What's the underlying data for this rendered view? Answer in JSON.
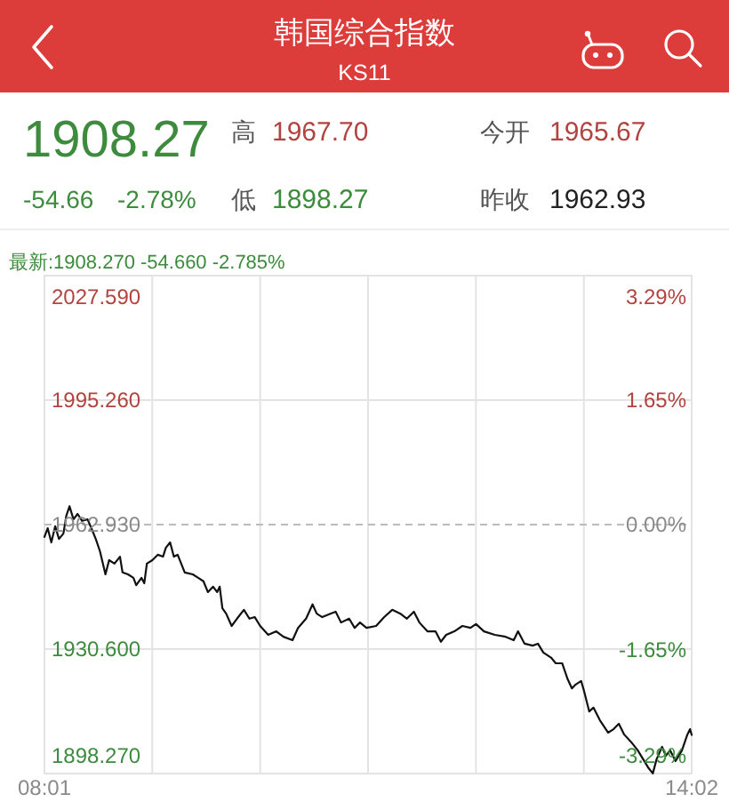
{
  "chart_data": {
    "type": "line",
    "title": "韩国综合指数",
    "subtitle": "KS11",
    "annotations": [
      "1908.27",
      "-54.66",
      "-2.78%",
      "高",
      "1967.70",
      "低",
      "1898.27",
      "今开",
      "1965.67",
      "昨收",
      "1962.93",
      "最新:1908.270 -54.660 -2.785%"
    ],
    "x": [
      8.017,
      8.047,
      8.081,
      8.117,
      8.152,
      8.193,
      8.22,
      8.25,
      8.287,
      8.325,
      8.367,
      8.418,
      8.453,
      8.494,
      8.533,
      8.584,
      8.618,
      8.668,
      8.719,
      8.743,
      8.794,
      8.844,
      8.87,
      8.919,
      8.945,
      8.969,
      9.02,
      9.07,
      9.119,
      9.145,
      9.185,
      9.22,
      9.255,
      9.321,
      9.396,
      9.446,
      9.495,
      9.536,
      9.585,
      9.622,
      9.646,
      9.671,
      9.706,
      9.757,
      9.807,
      9.871,
      9.922,
      9.972,
      10.022,
      10.097,
      10.172,
      10.238,
      10.323,
      10.374,
      10.449,
      10.509,
      10.548,
      10.599,
      10.675,
      10.724,
      10.774,
      10.849,
      10.9,
      10.95,
      11.01,
      11.1,
      11.175,
      11.25,
      11.325,
      11.386,
      11.451,
      11.502,
      11.577,
      11.652,
      11.702,
      11.751,
      11.827,
      11.902,
      11.977,
      12.028,
      12.103,
      12.203,
      12.304,
      12.379,
      12.419,
      12.48,
      12.555,
      12.604,
      12.654,
      12.729,
      12.77,
      12.83,
      12.88,
      12.92,
      12.955,
      13.006,
      13.03,
      13.081,
      13.12,
      13.18,
      13.256,
      13.307,
      13.356,
      13.406,
      13.481,
      13.532,
      13.582,
      13.632,
      13.672,
      13.707,
      13.758,
      13.793,
      13.833,
      13.883,
      13.943,
      13.993,
      14.018,
      14.033
    ],
    "series": [
      {
        "color": "#111111",
        "values": [
          1959.7,
          1962.0,
          1958.3,
          1962.5,
          1959.2,
          1960.6,
          1965.2,
          1967.7,
          1964.3,
          1965.7,
          1963.9,
          1964.3,
          1962.0,
          1959.2,
          1956.0,
          1950.0,
          1953.7,
          1952.8,
          1954.6,
          1950.5,
          1950.0,
          1949.1,
          1947.2,
          1949.1,
          1947.7,
          1952.8,
          1953.7,
          1955.1,
          1954.6,
          1956.9,
          1958.3,
          1954.6,
          1955.1,
          1950.5,
          1950.0,
          1949.1,
          1948.2,
          1945.4,
          1946.8,
          1945.4,
          1946.8,
          1941.2,
          1939.8,
          1936.6,
          1938.5,
          1940.8,
          1938.5,
          1938.9,
          1936.6,
          1934.3,
          1935.2,
          1933.8,
          1932.9,
          1936.1,
          1938.5,
          1942.2,
          1939.8,
          1938.9,
          1939.8,
          1940.3,
          1937.5,
          1938.5,
          1936.1,
          1937.5,
          1936.1,
          1936.6,
          1938.9,
          1940.8,
          1939.8,
          1938.5,
          1940.3,
          1937.5,
          1935.2,
          1935.2,
          1932.5,
          1934.3,
          1935.2,
          1936.6,
          1936.1,
          1937.1,
          1935.2,
          1934.3,
          1933.8,
          1932.9,
          1935.2,
          1932.0,
          1931.5,
          1932.0,
          1929.7,
          1928.3,
          1926.9,
          1926.9,
          1922.8,
          1920.4,
          1921.4,
          1922.3,
          1920.0,
          1914.4,
          1915.4,
          1912.1,
          1908.9,
          1909.8,
          1911.2,
          1908.4,
          1906.1,
          1904.3,
          1902.0,
          1899.7,
          1898.3,
          1902.0,
          1905.2,
          1902.9,
          1904.3,
          1901.5,
          1904.3,
          1908.4,
          1909.8,
          1908.3
        ]
      }
    ],
    "xlim": [
      8.017,
      14.033
    ],
    "xticks": [
      {
        "value": 8.017,
        "label": "08:01"
      },
      {
        "value": 9.019,
        "label": null
      },
      {
        "value": 10.022,
        "label": null
      },
      {
        "value": 11.025,
        "label": null
      },
      {
        "value": 12.028,
        "label": null
      },
      {
        "value": 13.031,
        "label": null
      },
      {
        "value": 14.033,
        "label": "14:02"
      }
    ],
    "ylim": [
      1898.27,
      2027.59
    ],
    "yticks": [
      {
        "value": 2027.59,
        "label": "2027.590"
      },
      {
        "value": 1995.26,
        "label": "1995.260"
      },
      {
        "value": 1962.93,
        "label": "1962.930"
      },
      {
        "value": 1930.6,
        "label": "1930.600"
      },
      {
        "value": 1898.27,
        "label": "1898.270"
      }
    ],
    "y2lim": [
      -3.29,
      3.29
    ],
    "y2ticks": [
      {
        "value": 3.29,
        "label": "3.29%"
      },
      {
        "value": 1.65,
        "label": "1.65%"
      },
      {
        "value": 0,
        "label": "0.00%"
      },
      {
        "value": -1.65,
        "label": "-1.65%"
      },
      {
        "value": -3.29,
        "label": "-3.29%"
      }
    ],
    "ref_lines": [
      {
        "axis": "y",
        "value": 1962.93,
        "line_style": "dashed",
        "color": "#bbbbbb"
      }
    ],
    "grid": true
  }
}
